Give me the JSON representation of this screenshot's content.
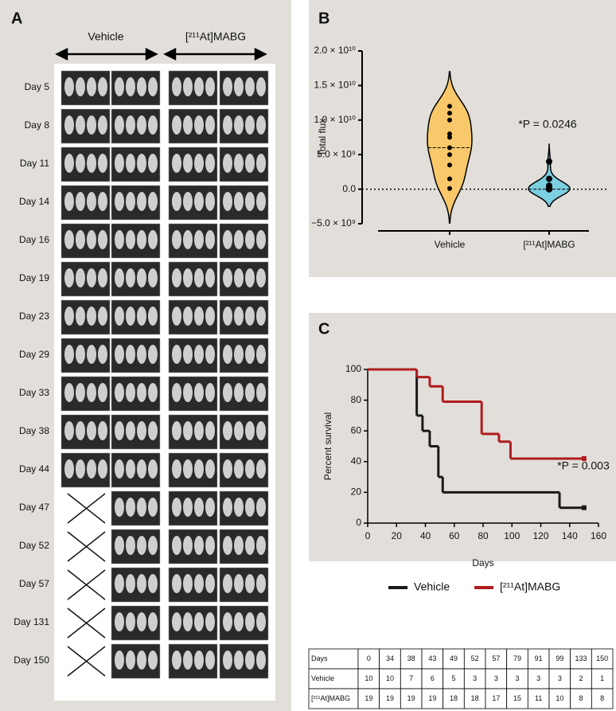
{
  "panel_a": {
    "label": "A",
    "groups": [
      "Vehicle",
      "[²¹¹At]MABG"
    ],
    "days": [
      "Day 5",
      "Day 8",
      "Day 11",
      "Day 14",
      "Day 16",
      "Day 19",
      "Day 23",
      "Day 29",
      "Day 33",
      "Day 38",
      "Day 44",
      "Day 47",
      "Day 52",
      "Day 57",
      "Day 131",
      "Day 150"
    ]
  },
  "chart_data": [
    {
      "type": "violin",
      "panel_label": "B",
      "y_label": "Total flux",
      "categories": [
        "Vehicle",
        "[²¹¹At]MABG"
      ],
      "series": [
        {
          "name": "Vehicle",
          "color": "#f8c86a",
          "values": [
            12000000000,
            11000000000,
            10000000000,
            8000000000,
            7500000000,
            6000000000,
            5000000000,
            3500000000,
            1500000000,
            100000000
          ]
        },
        {
          "name": "[²¹¹At]MABG",
          "color": "#7ccfe0",
          "values": [
            4000000000,
            1500000000,
            500000000,
            200000000,
            100000000,
            50000000,
            0,
            0,
            0,
            0,
            0,
            0,
            0,
            0,
            0,
            0,
            0,
            0,
            0
          ]
        }
      ],
      "ylim": [
        -5000000000,
        20000000000
      ],
      "yticks": [
        {
          "value": 20000000000,
          "label": "2.0 × 10¹⁰"
        },
        {
          "value": 15000000000,
          "label": "1.5 × 10¹⁰"
        },
        {
          "value": 10000000000,
          "label": "1.0 × 10¹⁰"
        },
        {
          "value": 5000000000,
          "label": "5.0 × 10⁹"
        },
        {
          "value": 0,
          "label": "0.0"
        },
        {
          "value": -5000000000,
          "label": "−5.0 × 10⁹"
        }
      ],
      "annotation": "*P = 0.0246"
    },
    {
      "type": "survival",
      "panel_label": "C",
      "x_label": "Days",
      "y_label": "Percent survival",
      "series": [
        {
          "name": "Vehicle",
          "color": "#1a1a1a",
          "x": [
            0,
            34,
            38,
            43,
            49,
            52,
            133,
            150
          ],
          "values": [
            100,
            70,
            60,
            50,
            30,
            20,
            10,
            10
          ]
        },
        {
          "name": "[²¹¹At]MABG",
          "color": "#b01c1c",
          "x": [
            0,
            34,
            43,
            52,
            79,
            91,
            99,
            150
          ],
          "values": [
            100,
            95,
            89,
            79,
            58,
            53,
            42,
            42
          ]
        }
      ],
      "xlim": [
        0,
        160
      ],
      "xticks": [
        0,
        20,
        40,
        60,
        80,
        100,
        120,
        140,
        160
      ],
      "ylim": [
        0,
        100
      ],
      "yticks": [
        0,
        20,
        40,
        60,
        80,
        100
      ],
      "annotation": "*P = 0.003"
    }
  ],
  "table": {
    "rows": [
      [
        "Days",
        "0",
        "34",
        "38",
        "43",
        "49",
        "52",
        "57",
        "79",
        "91",
        "99",
        "133",
        "150"
      ],
      [
        "Vehicle",
        "10",
        "10",
        "7",
        "6",
        "5",
        "3",
        "3",
        "3",
        "3",
        "3",
        "2",
        "1"
      ],
      [
        "[²¹¹At]MABG",
        "19",
        "19",
        "19",
        "19",
        "18",
        "18",
        "17",
        "15",
        "11",
        "10",
        "8",
        "8"
      ]
    ]
  }
}
